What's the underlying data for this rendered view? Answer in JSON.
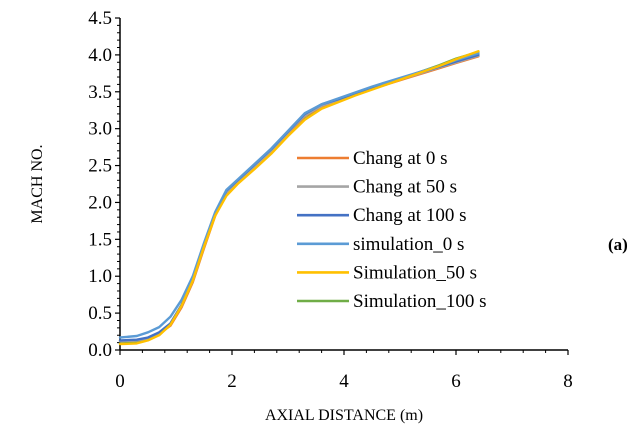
{
  "chart_data": {
    "type": "line",
    "title": "",
    "xlabel": "AXIAL DISTANCE (m)",
    "ylabel": "MACH NO.",
    "xlim": [
      0,
      8
    ],
    "ylim": [
      0,
      4.5
    ],
    "xticks": [
      "0",
      "2",
      "4",
      "6",
      "8"
    ],
    "yticks": [
      "0.0",
      "0.5",
      "1.0",
      "1.5",
      "2.0",
      "2.5",
      "3.0",
      "3.5",
      "4.0",
      "4.5"
    ],
    "grid": false,
    "legend_position": "center-right",
    "panel_label": "(a)",
    "series": [
      {
        "name": "Chang at 0 s",
        "color": "#ED7D31",
        "x": [
          0,
          0.3,
          0.5,
          0.7,
          0.9,
          1.1,
          1.3,
          1.5,
          1.7,
          1.9,
          2.1,
          2.4,
          2.7,
          3.0,
          3.3,
          3.6,
          3.9,
          4.2,
          4.5,
          4.8,
          5.1,
          5.4,
          5.7,
          6.0,
          6.4
        ],
        "y": [
          0.12,
          0.13,
          0.16,
          0.22,
          0.33,
          0.58,
          0.92,
          1.38,
          1.82,
          2.13,
          2.27,
          2.48,
          2.69,
          2.94,
          3.17,
          3.3,
          3.38,
          3.46,
          3.54,
          3.61,
          3.68,
          3.75,
          3.82,
          3.89,
          3.98
        ]
      },
      {
        "name": "Chang at 50 s",
        "color": "#A5A5A5",
        "x": [
          0,
          0.3,
          0.5,
          0.7,
          0.9,
          1.1,
          1.3,
          1.5,
          1.7,
          1.9,
          2.1,
          2.4,
          2.7,
          3.0,
          3.3,
          3.6,
          3.9,
          4.2,
          4.5,
          4.8,
          5.1,
          5.4,
          5.7,
          6.0,
          6.4
        ],
        "y": [
          0.12,
          0.13,
          0.16,
          0.23,
          0.35,
          0.6,
          0.94,
          1.4,
          1.84,
          2.14,
          2.28,
          2.49,
          2.7,
          2.95,
          3.18,
          3.31,
          3.39,
          3.47,
          3.55,
          3.62,
          3.69,
          3.76,
          3.83,
          3.9,
          3.99
        ]
      },
      {
        "name": "Chang at 100 s",
        "color": "#4472C4",
        "x": [
          0,
          0.3,
          0.5,
          0.7,
          0.9,
          1.1,
          1.3,
          1.5,
          1.7,
          1.9,
          2.1,
          2.4,
          2.7,
          3.0,
          3.3,
          3.6,
          3.9,
          4.2,
          4.5,
          4.8,
          5.1,
          5.4,
          5.7,
          6.0,
          6.4
        ],
        "y": [
          0.13,
          0.14,
          0.17,
          0.24,
          0.36,
          0.61,
          0.95,
          1.41,
          1.85,
          2.16,
          2.3,
          2.51,
          2.72,
          2.96,
          3.2,
          3.33,
          3.4,
          3.48,
          3.56,
          3.63,
          3.7,
          3.77,
          3.84,
          3.91,
          4.0
        ]
      },
      {
        "name": "simulation_0 s",
        "color": "#5B9BD5",
        "x": [
          0,
          0.3,
          0.5,
          0.7,
          0.9,
          1.1,
          1.3,
          1.5,
          1.7,
          1.9,
          2.1,
          2.4,
          2.7,
          3.0,
          3.3,
          3.6,
          3.9,
          4.2,
          4.5,
          4.8,
          5.1,
          5.4,
          5.7,
          6.0,
          6.4
        ],
        "y": [
          0.17,
          0.19,
          0.24,
          0.31,
          0.45,
          0.68,
          1.0,
          1.45,
          1.87,
          2.17,
          2.31,
          2.52,
          2.73,
          2.97,
          3.21,
          3.33,
          3.41,
          3.49,
          3.57,
          3.64,
          3.71,
          3.78,
          3.85,
          3.93,
          4.02
        ]
      },
      {
        "name": "Simulation_50 s",
        "color": "#FFC000",
        "x": [
          0,
          0.3,
          0.5,
          0.7,
          0.9,
          1.1,
          1.3,
          1.5,
          1.7,
          1.9,
          2.1,
          2.4,
          2.7,
          3.0,
          3.3,
          3.6,
          3.9,
          4.2,
          4.5,
          4.8,
          5.1,
          5.4,
          5.7,
          6.0,
          6.4
        ],
        "y": [
          0.08,
          0.09,
          0.13,
          0.2,
          0.34,
          0.6,
          0.94,
          1.4,
          1.82,
          2.09,
          2.25,
          2.45,
          2.66,
          2.9,
          3.12,
          3.27,
          3.36,
          3.45,
          3.53,
          3.61,
          3.69,
          3.77,
          3.85,
          3.94,
          4.05
        ]
      },
      {
        "name": "Simulation_100 s",
        "color": "#70AD47",
        "x": [
          0,
          0.3,
          0.5,
          0.7,
          0.9,
          1.1,
          1.3,
          1.5,
          1.7,
          1.9,
          2.1,
          2.4,
          2.7,
          3.0,
          3.3,
          3.6,
          3.9,
          4.2,
          4.5,
          4.8,
          5.1,
          5.4,
          5.7,
          6.0,
          6.4
        ],
        "y": [
          0.09,
          0.1,
          0.14,
          0.21,
          0.35,
          0.61,
          0.95,
          1.41,
          1.83,
          2.1,
          2.26,
          2.46,
          2.67,
          2.91,
          3.13,
          3.28,
          3.37,
          3.46,
          3.54,
          3.62,
          3.7,
          3.78,
          3.86,
          3.95,
          4.04
        ]
      }
    ],
    "draw_order": [
      5,
      0,
      1,
      2,
      3,
      4
    ]
  }
}
